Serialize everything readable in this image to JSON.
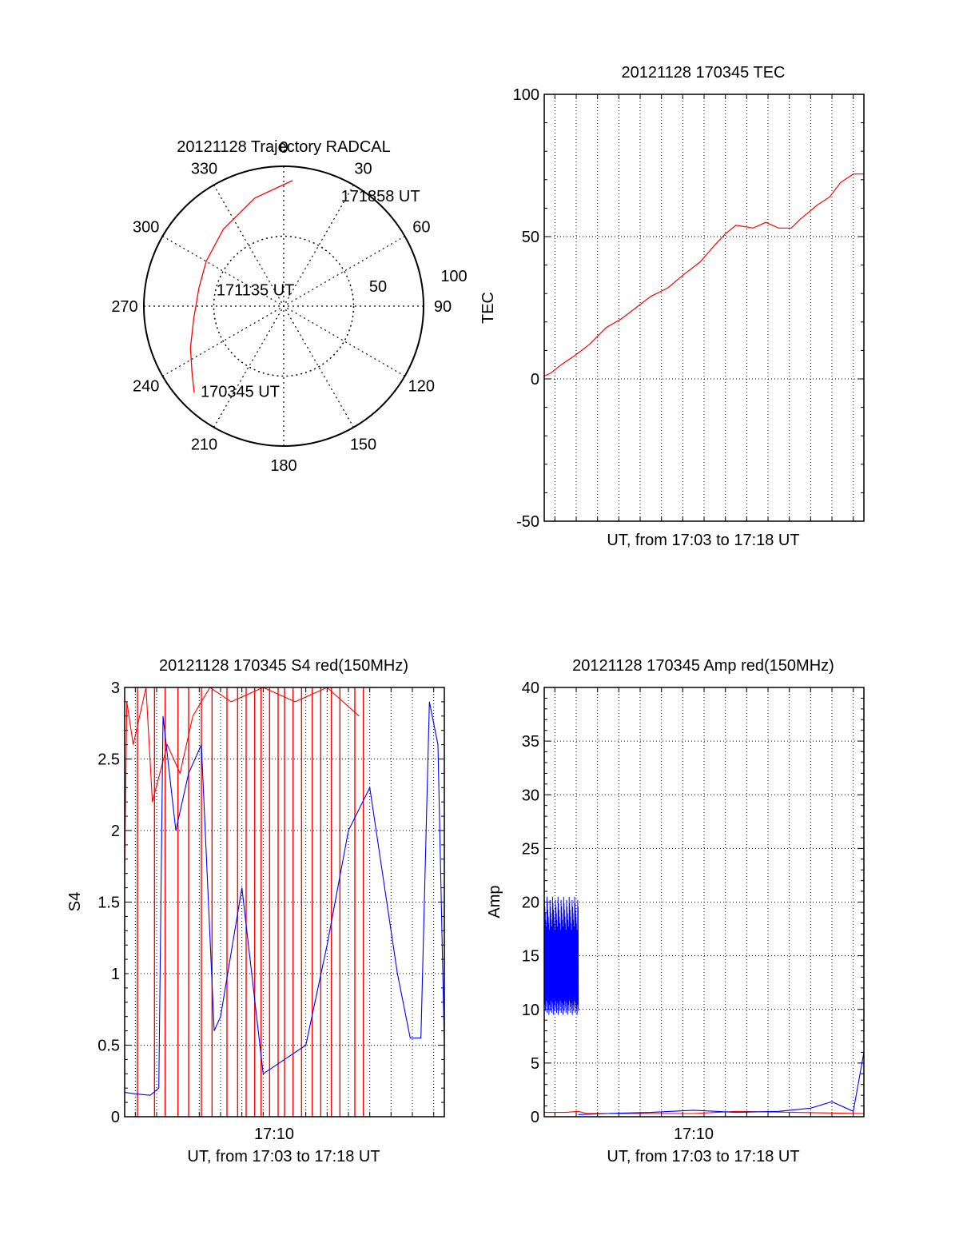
{
  "chart_data": [
    {
      "type": "polar",
      "title": "20121128 Trajectory RADCAL",
      "azimuth_labels": [
        "0",
        "30",
        "60",
        "90",
        "120",
        "150",
        "180",
        "210",
        "240",
        "270",
        "300",
        "330"
      ],
      "radius_labels": [
        "50",
        "100"
      ],
      "rlim": [
        0,
        100
      ],
      "grid": true,
      "annotations": [
        {
          "text": "171858 UT",
          "az": 30,
          "r": 91
        },
        {
          "text": "171135 UT",
          "az": 285,
          "r": 45
        },
        {
          "text": "170345 UT",
          "az": 222,
          "r": 82
        }
      ],
      "series": [
        {
          "color": "#ff0000",
          "points": [
            [
              4,
              90
            ],
            [
              345,
              80
            ],
            [
              322,
              70
            ],
            [
              300,
              64
            ],
            [
              282,
              62
            ],
            [
              262,
              65
            ],
            [
              246,
              73
            ],
            [
              234,
              81
            ],
            [
              226,
              89
            ]
          ]
        }
      ]
    },
    {
      "type": "line",
      "title": "20121128 170345 TEC",
      "xlabel": "UT, from 17:03 to 17:18 UT",
      "ylabel": "TEC",
      "xlim_minutes": [
        3.0,
        18.0
      ],
      "ylim": [
        -50,
        100
      ],
      "yticks": [
        "100",
        "50",
        "0",
        "-50"
      ],
      "grid": true,
      "series": [
        {
          "color": "#ff0000",
          "points": [
            [
              3.0,
              1
            ],
            [
              3.3,
              2
            ],
            [
              3.8,
              5
            ],
            [
              4.4,
              8
            ],
            [
              5.1,
              12
            ],
            [
              5.9,
              18
            ],
            [
              6.6,
              21
            ],
            [
              7.3,
              25
            ],
            [
              8.0,
              29
            ],
            [
              8.8,
              32
            ],
            [
              9.6,
              37
            ],
            [
              10.3,
              41
            ],
            [
              11.0,
              47
            ],
            [
              11.5,
              51
            ],
            [
              12.0,
              54
            ],
            [
              12.8,
              53
            ],
            [
              13.4,
              55
            ],
            [
              14.0,
              53
            ],
            [
              14.6,
              53
            ],
            [
              15.0,
              56
            ],
            [
              15.8,
              61
            ],
            [
              16.4,
              64
            ],
            [
              16.9,
              69
            ],
            [
              17.5,
              72
            ],
            [
              18.0,
              72
            ]
          ]
        }
      ]
    },
    {
      "type": "line",
      "title": "20121128 170345 S4 red(150MHz)",
      "xlabel": "UT, from 17:03 to 17:18 UT",
      "ylabel": "S4",
      "xtick_label": "17:10",
      "xlim_minutes": [
        3.0,
        18.0
      ],
      "ylim": [
        0,
        3
      ],
      "yticks": [
        "3",
        "2.5",
        "2",
        "1.5",
        "1",
        "0.5",
        "0"
      ],
      "grid": true,
      "series": [
        {
          "color": "#ff0000",
          "points": [
            [
              3.0,
              1.7
            ],
            [
              3.1,
              2.9
            ],
            [
              3.4,
              2.6
            ],
            [
              3.7,
              2.8
            ],
            [
              4.0,
              3.0
            ],
            [
              4.3,
              2.2
            ],
            [
              5.0,
              2.6
            ],
            [
              5.6,
              2.4
            ],
            [
              6.2,
              2.8
            ],
            [
              7.0,
              3.0
            ],
            [
              8.0,
              2.9
            ],
            [
              9.5,
              3.0
            ],
            [
              11.0,
              2.9
            ],
            [
              12.5,
              3.0
            ],
            [
              14.0,
              2.8
            ]
          ],
          "drops": [
            3.6,
            4.4,
            4.9,
            5.5,
            6.0,
            6.6,
            7.1,
            7.8,
            8.3,
            8.7,
            9.1,
            9.4,
            9.8,
            10.2,
            10.5,
            10.9,
            11.3,
            11.8,
            12.2,
            12.7,
            13.1,
            13.8,
            14.2
          ]
        },
        {
          "color": "#0000ff",
          "points": [
            [
              3.0,
              0.17
            ],
            [
              3.5,
              0.16
            ],
            [
              4.2,
              0.15
            ],
            [
              4.6,
              0.2
            ],
            [
              4.8,
              2.8
            ],
            [
              5.4,
              2.0
            ],
            [
              6.0,
              2.4
            ],
            [
              6.6,
              2.6
            ],
            [
              7.2,
              0.6
            ],
            [
              7.5,
              0.7
            ],
            [
              8.5,
              1.6
            ],
            [
              9.5,
              0.3
            ],
            [
              10.5,
              0.4
            ],
            [
              11.5,
              0.5
            ],
            [
              12.5,
              1.2
            ],
            [
              13.5,
              2.0
            ],
            [
              14.5,
              2.3
            ],
            [
              15.2,
              1.6
            ],
            [
              15.8,
              1.0
            ],
            [
              16.4,
              0.55
            ],
            [
              16.9,
              0.55
            ],
            [
              17.3,
              2.9
            ],
            [
              17.7,
              2.6
            ],
            [
              18.0,
              0.5
            ]
          ]
        }
      ]
    },
    {
      "type": "line",
      "title": "20121128 170345 Amp red(150MHz)",
      "xlabel": "UT, from 17:03 to 17:18 UT",
      "ylabel": "Amp",
      "xtick_label": "17:10",
      "xlim_minutes": [
        3.0,
        18.0
      ],
      "ylim": [
        0,
        40
      ],
      "yticks": [
        "40",
        "35",
        "30",
        "25",
        "20",
        "15",
        "10",
        "5",
        "0"
      ],
      "grid": true,
      "series": [
        {
          "color": "#ff0000",
          "points": [
            [
              3.0,
              0.4
            ],
            [
              4.0,
              0.4
            ],
            [
              4.6,
              0.5
            ],
            [
              5.0,
              0.3
            ],
            [
              10.0,
              0.3
            ],
            [
              12.0,
              0.5
            ],
            [
              18.0,
              0.3
            ]
          ]
        },
        {
          "color": "#0000ff",
          "band": {
            "x_start": 3.0,
            "x_end": 4.6,
            "low": 9.5,
            "high": 20.5
          },
          "points": [
            [
              4.6,
              0.2
            ],
            [
              6.0,
              0.3
            ],
            [
              8.0,
              0.4
            ],
            [
              10.0,
              0.6
            ],
            [
              12.0,
              0.4
            ],
            [
              14.0,
              0.5
            ],
            [
              15.5,
              0.8
            ],
            [
              16.5,
              1.4
            ],
            [
              17.5,
              0.5
            ],
            [
              18.0,
              6.0
            ]
          ]
        }
      ]
    }
  ]
}
